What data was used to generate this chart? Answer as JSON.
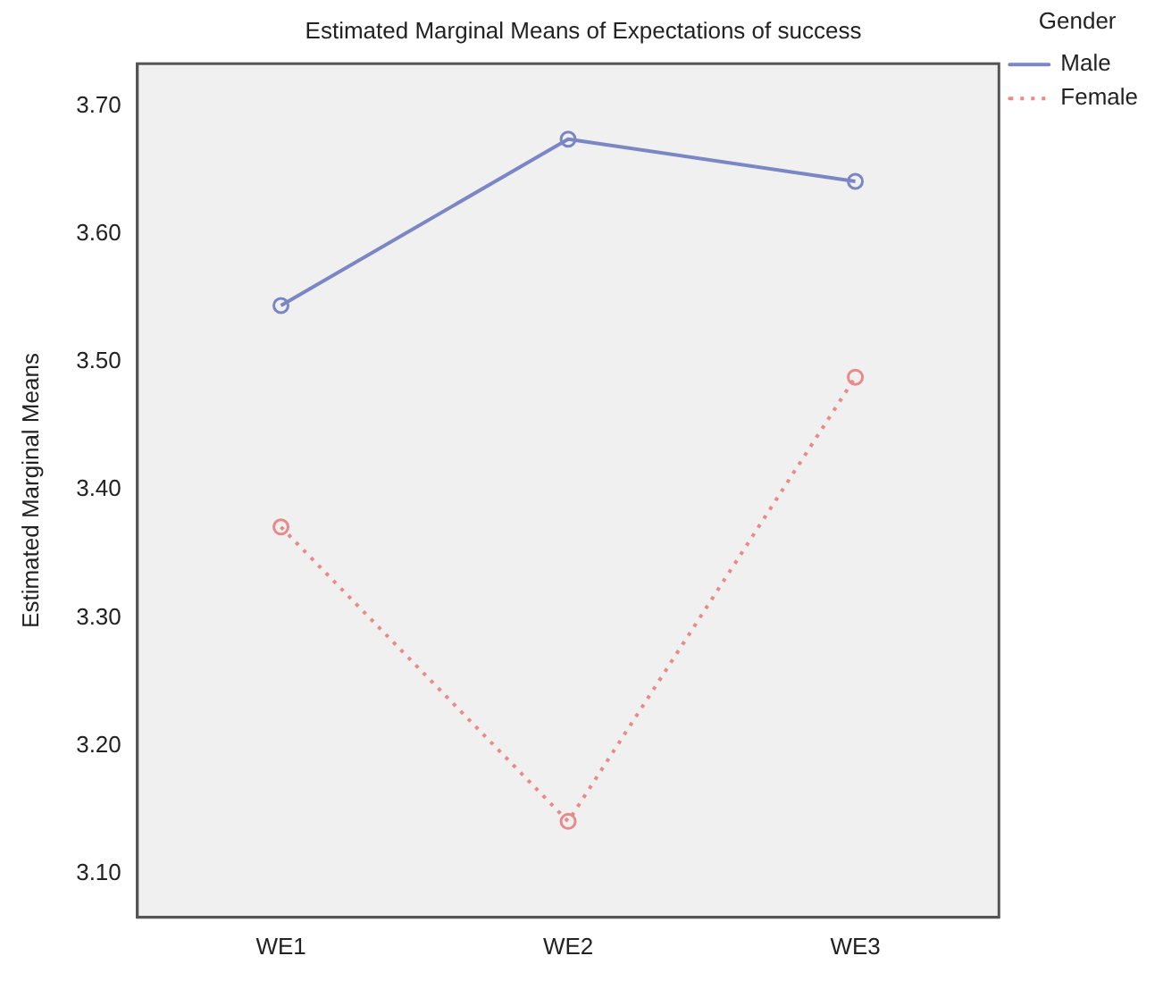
{
  "chart_data": {
    "type": "line",
    "title": "Estimated Marginal Means of Expectations of success",
    "ylabel": "Estimated Marginal Means",
    "legend_title": "Gender",
    "categories": [
      "WE1",
      "WE2",
      "WE3"
    ],
    "series": [
      {
        "name": "Male",
        "color": "#7b86c4",
        "values": [
          3.544,
          3.674,
          3.641
        ],
        "line_style": "solid"
      },
      {
        "name": "Female",
        "color": "#e88a8a",
        "values": [
          3.371,
          3.141,
          3.488
        ],
        "line_style": "dotted"
      }
    ],
    "ylim": [
      3.066,
      3.733
    ],
    "yticks": [
      {
        "value": 3.1,
        "label": "3.10"
      },
      {
        "value": 3.2,
        "label": "3.20"
      },
      {
        "value": 3.3,
        "label": "3.30"
      },
      {
        "value": 3.4,
        "label": "3.40"
      },
      {
        "value": 3.5,
        "label": "3.50"
      },
      {
        "value": 3.6,
        "label": "3.60"
      },
      {
        "value": 3.7,
        "label": "3.70"
      }
    ],
    "grid": false,
    "legend": "top right",
    "marker": "circle"
  }
}
